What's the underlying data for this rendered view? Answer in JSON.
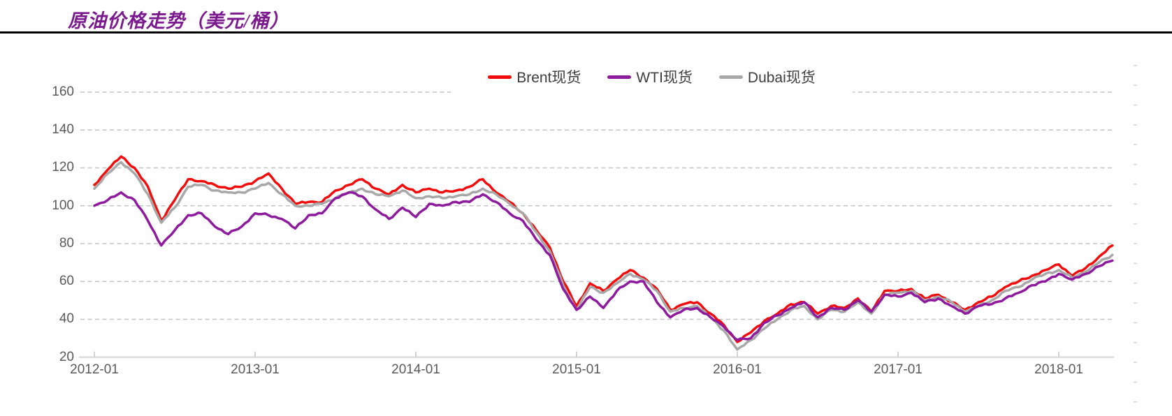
{
  "header": {
    "title": "原油价格走势（美元/桶）"
  },
  "colors": {
    "title": "#7b1a8e",
    "title_rule": "#000000",
    "grid": "#c3c3c3",
    "axis_line": "#d9d9d9",
    "axis_tick": "#bfbfbf",
    "tick_label": "#595959",
    "legend_text": "#3d3d3d",
    "brent": "#f20d0d",
    "wti": "#8e1a9e",
    "dubai": "#a8a8a8"
  },
  "chart_data": {
    "type": "line",
    "title": "原油价格走势（美元/桶）",
    "xlabel": "",
    "ylabel": "",
    "ylim": [
      20,
      160
    ],
    "yticks": [
      160,
      140,
      120,
      100,
      80,
      60,
      40,
      20
    ],
    "xticks": [
      "2012-01",
      "2013-01",
      "2014-01",
      "2015-01",
      "2016-01",
      "2017-01",
      "2018-01"
    ],
    "grid": "horizontal-dashed",
    "legend_position": "top-center",
    "x": [
      "2012-01",
      "2012-02",
      "2012-03",
      "2012-04",
      "2012-05",
      "2012-06",
      "2012-07",
      "2012-08",
      "2012-09",
      "2012-10",
      "2012-11",
      "2012-12",
      "2013-01",
      "2013-02",
      "2013-03",
      "2013-04",
      "2013-05",
      "2013-06",
      "2013-07",
      "2013-08",
      "2013-09",
      "2013-10",
      "2013-11",
      "2013-12",
      "2014-01",
      "2014-02",
      "2014-03",
      "2014-04",
      "2014-05",
      "2014-06",
      "2014-07",
      "2014-08",
      "2014-09",
      "2014-10",
      "2014-11",
      "2014-12",
      "2015-01",
      "2015-02",
      "2015-03",
      "2015-04",
      "2015-05",
      "2015-06",
      "2015-07",
      "2015-08",
      "2015-09",
      "2015-10",
      "2015-11",
      "2015-12",
      "2016-01",
      "2016-02",
      "2016-03",
      "2016-04",
      "2016-05",
      "2016-06",
      "2016-07",
      "2016-08",
      "2016-09",
      "2016-10",
      "2016-11",
      "2016-12",
      "2017-01",
      "2017-02",
      "2017-03",
      "2017-04",
      "2017-05",
      "2017-06",
      "2017-07",
      "2017-08",
      "2017-09",
      "2017-10",
      "2017-11",
      "2017-12",
      "2018-01",
      "2018-02",
      "2018-03",
      "2018-04",
      "2018-05"
    ],
    "series": [
      {
        "name": "Brent现货",
        "color": "#f20d0d",
        "values": [
          111,
          119,
          126,
          120,
          110,
          92,
          103,
          114,
          113,
          111,
          109,
          110,
          113,
          117,
          109,
          101,
          102,
          102,
          108,
          111,
          114,
          109,
          106,
          111,
          107,
          109,
          107,
          108,
          110,
          114,
          107,
          102,
          96,
          87,
          78,
          60,
          47,
          59,
          55,
          61,
          66,
          62,
          56,
          45,
          48,
          49,
          43,
          37,
          28,
          33,
          39,
          43,
          48,
          49,
          43,
          47,
          46,
          51,
          44,
          55,
          55,
          56,
          51,
          53,
          49,
          45,
          49,
          52,
          57,
          60,
          63,
          66,
          69,
          63,
          67,
          73,
          79
        ]
      },
      {
        "name": "WTI现货",
        "color": "#8e1a9e",
        "values": [
          100,
          103,
          107,
          103,
          92,
          79,
          87,
          95,
          96,
          89,
          85,
          89,
          96,
          95,
          93,
          88,
          95,
          96,
          104,
          107,
          105,
          98,
          93,
          99,
          94,
          101,
          100,
          102,
          102,
          106,
          102,
          96,
          92,
          82,
          74,
          56,
          45,
          52,
          46,
          55,
          60,
          60,
          49,
          41,
          45,
          46,
          41,
          36,
          29,
          30,
          38,
          42,
          46,
          49,
          41,
          46,
          45,
          50,
          44,
          53,
          52,
          54,
          49,
          51,
          47,
          43,
          47,
          48,
          51,
          54,
          58,
          60,
          64,
          61,
          64,
          68,
          71
        ]
      },
      {
        "name": "Dubai现货",
        "color": "#a8a8a8",
        "values": [
          109,
          117,
          123,
          117,
          106,
          91,
          99,
          110,
          111,
          108,
          107,
          107,
          109,
          112,
          106,
          100,
          100,
          101,
          104,
          107,
          109,
          106,
          105,
          108,
          104,
          105,
          104,
          105,
          106,
          109,
          106,
          101,
          96,
          86,
          76,
          58,
          45,
          57,
          54,
          59,
          64,
          61,
          55,
          44,
          46,
          47,
          41,
          34,
          24,
          29,
          35,
          40,
          45,
          47,
          40,
          45,
          44,
          49,
          43,
          53,
          54,
          55,
          50,
          52,
          49,
          44,
          47,
          50,
          55,
          57,
          61,
          64,
          66,
          62,
          65,
          70,
          74
        ]
      }
    ]
  }
}
